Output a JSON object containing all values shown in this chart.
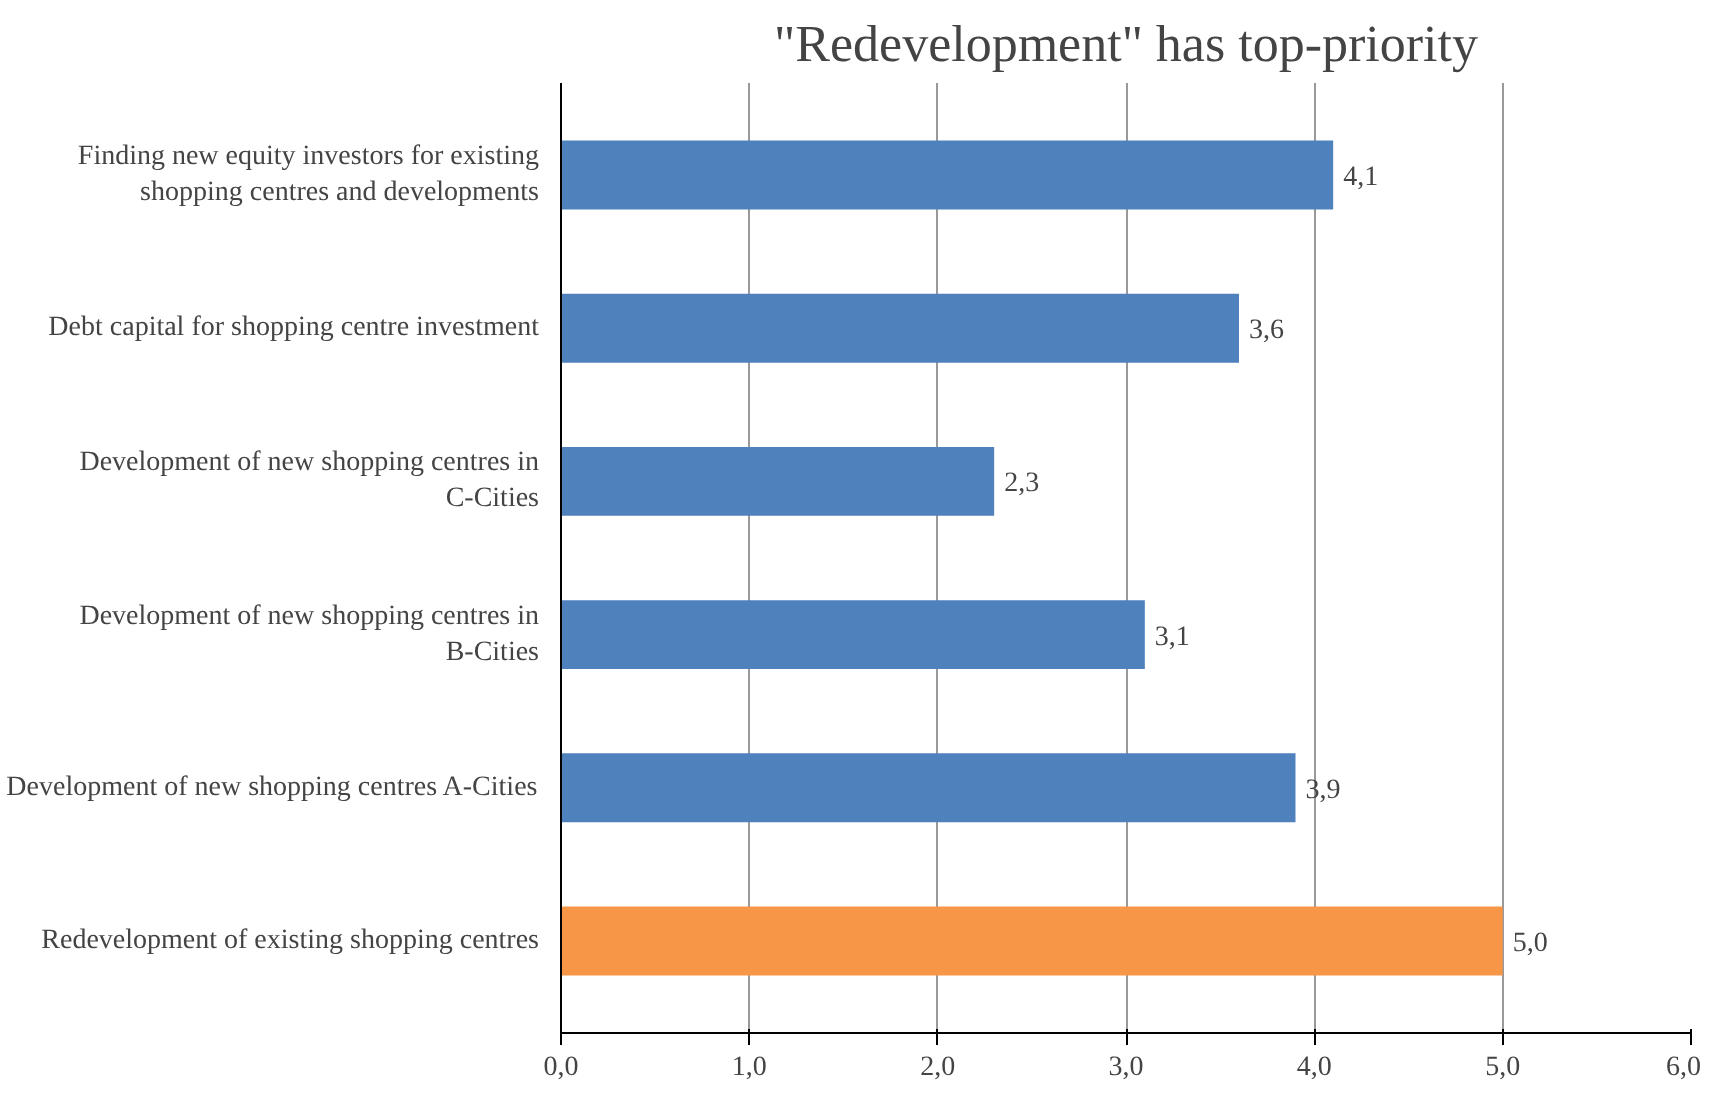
{
  "chart_data": {
    "type": "bar",
    "orientation": "horizontal",
    "title": "\"Redevelopment\" has top-priority",
    "categories": [
      "Finding new equity investors for existing shopping centres and developments",
      "Debt capital for shopping centre investment",
      "Development of new shopping centres in C-Cities",
      "Development of new shopping centres in B-Cities",
      "Development of new shopping centres A-Cities",
      "Redevelopment of existing shopping centres"
    ],
    "values": [
      4.1,
      3.6,
      2.3,
      3.1,
      3.9,
      5.0
    ],
    "colors": [
      "#4f81bd",
      "#4f81bd",
      "#4f81bd",
      "#4f81bd",
      "#4f81bd",
      "#f79646"
    ],
    "value_labels": [
      "4,1",
      "3,6",
      "2,3",
      "3,1",
      "3,9",
      "5,0"
    ],
    "xlim": [
      0,
      6
    ],
    "xticks": [
      {
        "value": 0,
        "label": "0,0"
      },
      {
        "value": 1,
        "label": "1,0"
      },
      {
        "value": 2,
        "label": "2,0"
      },
      {
        "value": 3,
        "label": "3,0"
      },
      {
        "value": 4,
        "label": "4,0"
      },
      {
        "value": 5,
        "label": "5,0"
      },
      {
        "value": 6,
        "label": "6,0"
      }
    ],
    "grid": "x"
  }
}
